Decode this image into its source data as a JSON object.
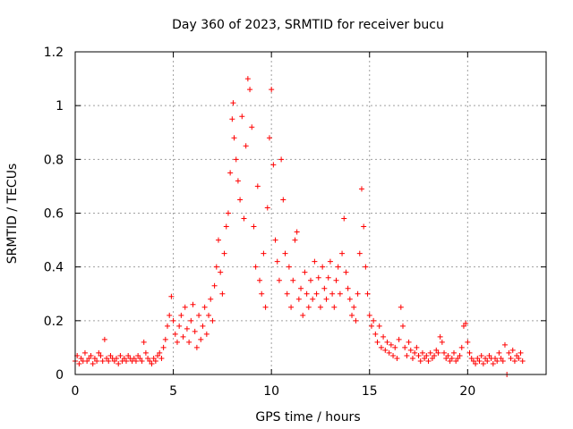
{
  "chart_data": {
    "type": "scatter",
    "title": "Day 360 of 2023, SRMTID for receiver bucu",
    "xlabel": "GPS time / hours",
    "ylabel": "SRMTID / TECUs",
    "xlim": [
      0,
      24
    ],
    "ylim": [
      0,
      1.2
    ],
    "xticks": [
      0,
      5,
      10,
      15,
      20
    ],
    "xtick_labels": [
      "0",
      "5",
      "10",
      "15",
      "20"
    ],
    "yticks": [
      0,
      0.2,
      0.4,
      0.6,
      0.8,
      1.0,
      1.2
    ],
    "ytick_labels": [
      "0",
      "0.2",
      "0.4",
      "0.6",
      "0.8",
      "1",
      "1.2"
    ],
    "grid": true,
    "marker": "+",
    "color": "#ff0000",
    "series": [
      {
        "name": "SRMTID",
        "points": [
          [
            0.0,
            0.05
          ],
          [
            0.1,
            0.07
          ],
          [
            0.2,
            0.04
          ],
          [
            0.3,
            0.06
          ],
          [
            0.4,
            0.05
          ],
          [
            0.5,
            0.08
          ],
          [
            0.6,
            0.05
          ],
          [
            0.7,
            0.06
          ],
          [
            0.8,
            0.07
          ],
          [
            0.9,
            0.04
          ],
          [
            1.0,
            0.06
          ],
          [
            1.1,
            0.05
          ],
          [
            1.2,
            0.08
          ],
          [
            1.3,
            0.07
          ],
          [
            1.4,
            0.05
          ],
          [
            1.5,
            0.13
          ],
          [
            1.6,
            0.06
          ],
          [
            1.7,
            0.05
          ],
          [
            1.8,
            0.07
          ],
          [
            1.9,
            0.06
          ],
          [
            2.0,
            0.05
          ],
          [
            2.1,
            0.06
          ],
          [
            2.2,
            0.04
          ],
          [
            2.3,
            0.07
          ],
          [
            2.4,
            0.05
          ],
          [
            2.5,
            0.06
          ],
          [
            2.6,
            0.05
          ],
          [
            2.7,
            0.07
          ],
          [
            2.8,
            0.06
          ],
          [
            2.9,
            0.05
          ],
          [
            3.0,
            0.06
          ],
          [
            3.1,
            0.05
          ],
          [
            3.2,
            0.07
          ],
          [
            3.3,
            0.06
          ],
          [
            3.4,
            0.05
          ],
          [
            3.5,
            0.12
          ],
          [
            3.6,
            0.08
          ],
          [
            3.7,
            0.06
          ],
          [
            3.8,
            0.05
          ],
          [
            3.9,
            0.04
          ],
          [
            4.0,
            0.06
          ],
          [
            4.1,
            0.05
          ],
          [
            4.2,
            0.07
          ],
          [
            4.3,
            0.08
          ],
          [
            4.4,
            0.06
          ],
          [
            4.5,
            0.1
          ],
          [
            4.6,
            0.13
          ],
          [
            4.7,
            0.18
          ],
          [
            4.8,
            0.22
          ],
          [
            4.9,
            0.29
          ],
          [
            5.0,
            0.2
          ],
          [
            5.1,
            0.15
          ],
          [
            5.2,
            0.12
          ],
          [
            5.3,
            0.18
          ],
          [
            5.4,
            0.22
          ],
          [
            5.5,
            0.14
          ],
          [
            5.6,
            0.25
          ],
          [
            5.7,
            0.17
          ],
          [
            5.8,
            0.12
          ],
          [
            5.9,
            0.2
          ],
          [
            6.0,
            0.26
          ],
          [
            6.1,
            0.16
          ],
          [
            6.2,
            0.1
          ],
          [
            6.3,
            0.22
          ],
          [
            6.4,
            0.13
          ],
          [
            6.5,
            0.18
          ],
          [
            6.6,
            0.25
          ],
          [
            6.7,
            0.15
          ],
          [
            6.8,
            0.22
          ],
          [
            6.9,
            0.28
          ],
          [
            7.0,
            0.2
          ],
          [
            7.1,
            0.33
          ],
          [
            7.2,
            0.4
          ],
          [
            7.3,
            0.5
          ],
          [
            7.4,
            0.38
          ],
          [
            7.5,
            0.3
          ],
          [
            7.6,
            0.45
          ],
          [
            7.7,
            0.55
          ],
          [
            7.8,
            0.6
          ],
          [
            7.9,
            0.75
          ],
          [
            8.0,
            0.95
          ],
          [
            8.05,
            1.01
          ],
          [
            8.1,
            0.88
          ],
          [
            8.2,
            0.8
          ],
          [
            8.3,
            0.72
          ],
          [
            8.4,
            0.65
          ],
          [
            8.5,
            0.96
          ],
          [
            8.6,
            0.58
          ],
          [
            8.7,
            0.85
          ],
          [
            8.8,
            1.1
          ],
          [
            8.9,
            1.06
          ],
          [
            9.0,
            0.92
          ],
          [
            9.1,
            0.55
          ],
          [
            9.2,
            0.4
          ],
          [
            9.3,
            0.7
          ],
          [
            9.4,
            0.35
          ],
          [
            9.5,
            0.3
          ],
          [
            9.6,
            0.45
          ],
          [
            9.7,
            0.25
          ],
          [
            9.8,
            0.62
          ],
          [
            9.9,
            0.88
          ],
          [
            10.0,
            1.06
          ],
          [
            10.1,
            0.78
          ],
          [
            10.2,
            0.5
          ],
          [
            10.3,
            0.42
          ],
          [
            10.4,
            0.35
          ],
          [
            10.5,
            0.8
          ],
          [
            10.6,
            0.65
          ],
          [
            10.7,
            0.45
          ],
          [
            10.8,
            0.3
          ],
          [
            10.9,
            0.4
          ],
          [
            11.0,
            0.25
          ],
          [
            11.1,
            0.35
          ],
          [
            11.2,
            0.5
          ],
          [
            11.3,
            0.53
          ],
          [
            11.4,
            0.28
          ],
          [
            11.5,
            0.32
          ],
          [
            11.6,
            0.22
          ],
          [
            11.7,
            0.38
          ],
          [
            11.8,
            0.3
          ],
          [
            11.9,
            0.25
          ],
          [
            12.0,
            0.35
          ],
          [
            12.1,
            0.28
          ],
          [
            12.2,
            0.42
          ],
          [
            12.3,
            0.3
          ],
          [
            12.4,
            0.36
          ],
          [
            12.5,
            0.25
          ],
          [
            12.6,
            0.4
          ],
          [
            12.7,
            0.32
          ],
          [
            12.8,
            0.28
          ],
          [
            12.9,
            0.36
          ],
          [
            13.0,
            0.42
          ],
          [
            13.1,
            0.3
          ],
          [
            13.2,
            0.25
          ],
          [
            13.3,
            0.35
          ],
          [
            13.4,
            0.4
          ],
          [
            13.5,
            0.3
          ],
          [
            13.6,
            0.45
          ],
          [
            13.7,
            0.58
          ],
          [
            13.8,
            0.38
          ],
          [
            13.9,
            0.32
          ],
          [
            14.0,
            0.28
          ],
          [
            14.1,
            0.22
          ],
          [
            14.2,
            0.25
          ],
          [
            14.3,
            0.2
          ],
          [
            14.4,
            0.3
          ],
          [
            14.5,
            0.45
          ],
          [
            14.6,
            0.69
          ],
          [
            14.7,
            0.55
          ],
          [
            14.8,
            0.4
          ],
          [
            14.9,
            0.3
          ],
          [
            15.0,
            0.22
          ],
          [
            15.1,
            0.18
          ],
          [
            15.2,
            0.2
          ],
          [
            15.3,
            0.15
          ],
          [
            15.4,
            0.12
          ],
          [
            15.5,
            0.18
          ],
          [
            15.6,
            0.1
          ],
          [
            15.7,
            0.14
          ],
          [
            15.8,
            0.09
          ],
          [
            15.9,
            0.12
          ],
          [
            16.0,
            0.08
          ],
          [
            16.1,
            0.11
          ],
          [
            16.2,
            0.07
          ],
          [
            16.3,
            0.1
          ],
          [
            16.4,
            0.06
          ],
          [
            16.5,
            0.13
          ],
          [
            16.6,
            0.25
          ],
          [
            16.7,
            0.18
          ],
          [
            16.8,
            0.1
          ],
          [
            16.9,
            0.07
          ],
          [
            17.0,
            0.12
          ],
          [
            17.1,
            0.09
          ],
          [
            17.2,
            0.06
          ],
          [
            17.3,
            0.08
          ],
          [
            17.4,
            0.1
          ],
          [
            17.5,
            0.07
          ],
          [
            17.6,
            0.05
          ],
          [
            17.7,
            0.08
          ],
          [
            17.8,
            0.06
          ],
          [
            17.9,
            0.07
          ],
          [
            18.0,
            0.05
          ],
          [
            18.1,
            0.08
          ],
          [
            18.2,
            0.06
          ],
          [
            18.3,
            0.07
          ],
          [
            18.4,
            0.09
          ],
          [
            18.5,
            0.08
          ],
          [
            18.6,
            0.14
          ],
          [
            18.7,
            0.12
          ],
          [
            18.8,
            0.08
          ],
          [
            18.9,
            0.06
          ],
          [
            19.0,
            0.07
          ],
          [
            19.1,
            0.05
          ],
          [
            19.2,
            0.06
          ],
          [
            19.3,
            0.08
          ],
          [
            19.4,
            0.05
          ],
          [
            19.5,
            0.06
          ],
          [
            19.6,
            0.07
          ],
          [
            19.7,
            0.1
          ],
          [
            19.8,
            0.18
          ],
          [
            19.9,
            0.19
          ],
          [
            20.0,
            0.12
          ],
          [
            20.1,
            0.08
          ],
          [
            20.2,
            0.06
          ],
          [
            20.3,
            0.05
          ],
          [
            20.4,
            0.04
          ],
          [
            20.5,
            0.06
          ],
          [
            20.6,
            0.05
          ],
          [
            20.7,
            0.07
          ],
          [
            20.8,
            0.04
          ],
          [
            20.9,
            0.06
          ],
          [
            21.0,
            0.05
          ],
          [
            21.1,
            0.07
          ],
          [
            21.2,
            0.06
          ],
          [
            21.3,
            0.04
          ],
          [
            21.4,
            0.06
          ],
          [
            21.5,
            0.05
          ],
          [
            21.6,
            0.08
          ],
          [
            21.7,
            0.06
          ],
          [
            21.8,
            0.05
          ],
          [
            21.9,
            0.11
          ],
          [
            22.0,
            0.0
          ],
          [
            22.1,
            0.08
          ],
          [
            22.2,
            0.06
          ],
          [
            22.3,
            0.09
          ],
          [
            22.4,
            0.05
          ],
          [
            22.5,
            0.07
          ],
          [
            22.6,
            0.06
          ],
          [
            22.7,
            0.08
          ],
          [
            22.8,
            0.05
          ]
        ]
      }
    ]
  }
}
